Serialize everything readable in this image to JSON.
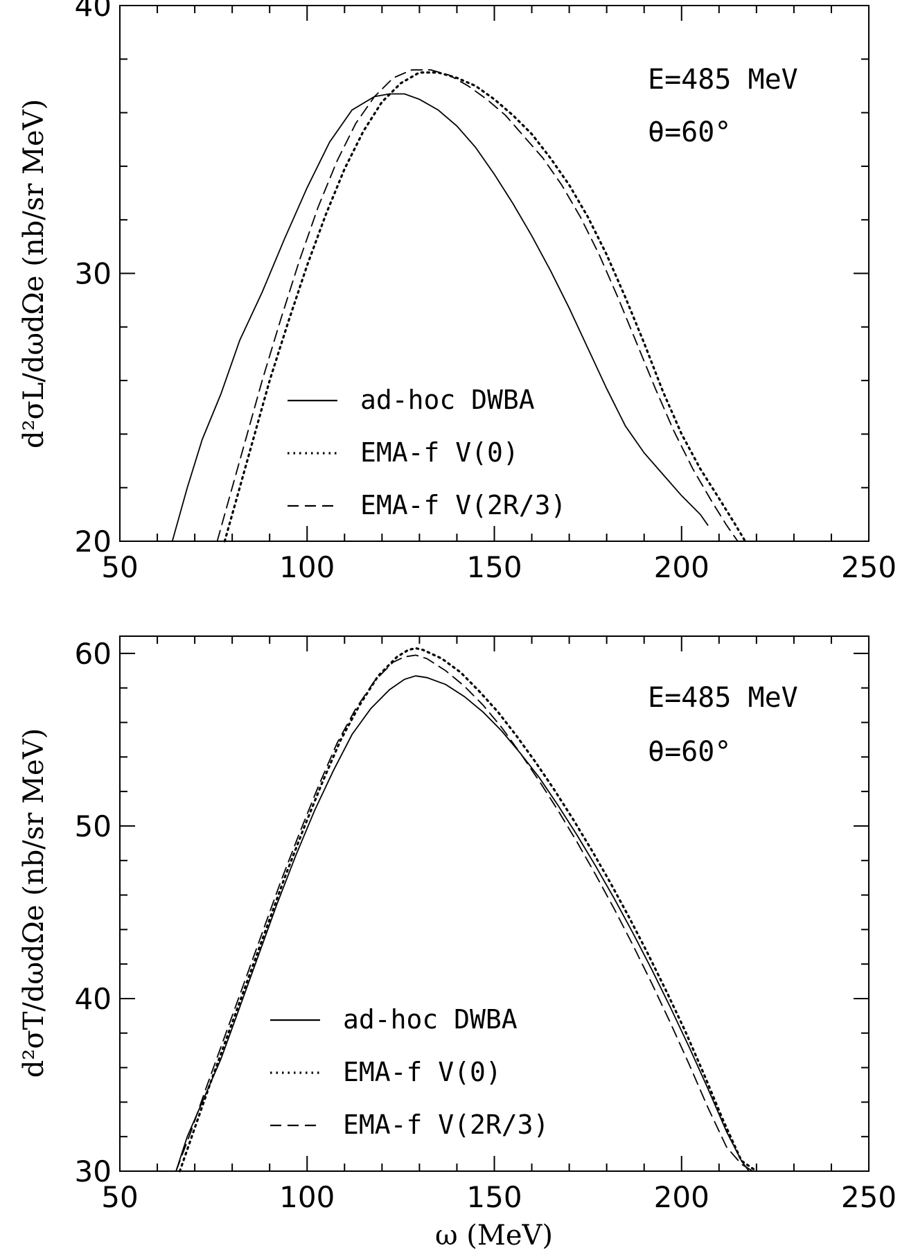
{
  "chart_data": [
    {
      "type": "line",
      "panel": "top",
      "ylabel": "d²σL/dωdΩe (nb/sr MeV)",
      "xlabel": "",
      "xlim": [
        50,
        250
      ],
      "ylim": [
        20,
        40
      ],
      "xticks": [
        "50",
        "100",
        "150",
        "200",
        "250"
      ],
      "yticks": [
        "20",
        "30",
        "40"
      ],
      "annotations": [
        "E=485 MeV",
        "θ=60°"
      ],
      "legend_position": "bottom-left",
      "series": [
        {
          "name": "ad-hoc DWBA",
          "style": "solid",
          "x": [
            64,
            68,
            72,
            77,
            82,
            88,
            94,
            100,
            106,
            112,
            118,
            122,
            126,
            130,
            135,
            140,
            145,
            150,
            155,
            160,
            165,
            170,
            175,
            180,
            185,
            190,
            195,
            200,
            205,
            207
          ],
          "y": [
            20.0,
            22.0,
            23.8,
            25.5,
            27.5,
            29.3,
            31.3,
            33.2,
            34.9,
            36.1,
            36.6,
            36.7,
            36.7,
            36.5,
            36.1,
            35.5,
            34.7,
            33.7,
            32.6,
            31.4,
            30.1,
            28.7,
            27.2,
            25.7,
            24.3,
            23.3,
            22.5,
            21.7,
            21.0,
            20.6
          ]
        },
        {
          "name": "EMA-f V(0)",
          "style": "dotted",
          "x": [
            78,
            82,
            86,
            90,
            95,
            100,
            105,
            110,
            115,
            120,
            125,
            130,
            135,
            140,
            145,
            150,
            155,
            160,
            165,
            170,
            175,
            180,
            185,
            190,
            195,
            200,
            205,
            210,
            214,
            217
          ],
          "y": [
            20.0,
            22.0,
            24.0,
            26.0,
            28.2,
            30.3,
            32.2,
            33.9,
            35.3,
            36.4,
            37.1,
            37.5,
            37.5,
            37.3,
            37.0,
            36.5,
            35.9,
            35.2,
            34.3,
            33.3,
            32.1,
            30.7,
            29.1,
            27.4,
            25.6,
            24.0,
            22.7,
            21.6,
            20.7,
            20.0
          ]
        },
        {
          "name": "EMA-f V(2R/3)",
          "style": "dashed",
          "x": [
            76,
            80,
            84,
            88,
            93,
            98,
            103,
            108,
            113,
            118,
            123,
            128,
            133,
            138,
            143,
            148,
            153,
            158,
            163,
            168,
            173,
            178,
            183,
            188,
            193,
            198,
            203,
            208,
            212,
            215
          ],
          "y": [
            20.0,
            22.0,
            24.0,
            26.0,
            28.3,
            30.5,
            32.5,
            34.2,
            35.6,
            36.6,
            37.3,
            37.6,
            37.6,
            37.4,
            37.0,
            36.5,
            35.9,
            35.1,
            34.3,
            33.3,
            32.1,
            30.7,
            29.1,
            27.4,
            25.7,
            24.1,
            22.7,
            21.5,
            20.6,
            20.0
          ]
        }
      ]
    },
    {
      "type": "line",
      "panel": "bottom",
      "ylabel": "d²σT/dωdΩe (nb/sr MeV)",
      "xlabel": "ω (MeV)",
      "xlim": [
        50,
        250
      ],
      "ylim": [
        30,
        61
      ],
      "xticks": [
        "50",
        "100",
        "150",
        "200",
        "250"
      ],
      "yticks": [
        "30",
        "40",
        "50",
        "60"
      ],
      "annotations": [
        "E=485 MeV",
        "θ=60°"
      ],
      "legend_position": "bottom-left",
      "series": [
        {
          "name": "ad-hoc DWBA",
          "style": "solid",
          "x": [
            65,
            68,
            72,
            77,
            82,
            87,
            92,
            97,
            102,
            107,
            112,
            117,
            122,
            126,
            129,
            132,
            137,
            142,
            147,
            152,
            157,
            162,
            167,
            172,
            177,
            182,
            187,
            192,
            197,
            202,
            207,
            212,
            216,
            218
          ],
          "y": [
            30.0,
            32.0,
            34.0,
            36.5,
            39.5,
            42.5,
            45.5,
            48.3,
            50.9,
            53.2,
            55.3,
            56.8,
            57.9,
            58.5,
            58.7,
            58.6,
            58.2,
            57.5,
            56.6,
            55.5,
            54.2,
            52.8,
            51.2,
            49.5,
            47.7,
            45.8,
            43.8,
            41.7,
            39.5,
            37.2,
            34.8,
            32.3,
            30.6,
            30.0
          ]
        },
        {
          "name": "EMA-f V(0)",
          "style": "dotted",
          "x": [
            66,
            70,
            74,
            79,
            84,
            89,
            94,
            99,
            104,
            109,
            114,
            119,
            124,
            127,
            129,
            131,
            136,
            141,
            146,
            151,
            156,
            161,
            166,
            171,
            176,
            181,
            186,
            191,
            196,
            201,
            206,
            211,
            216,
            220
          ],
          "y": [
            30.0,
            32.5,
            35.0,
            38.0,
            41.0,
            44.0,
            47.0,
            49.8,
            52.5,
            55.0,
            57.0,
            58.7,
            59.8,
            60.2,
            60.3,
            60.2,
            59.7,
            58.9,
            57.8,
            56.6,
            55.2,
            53.7,
            52.1,
            50.4,
            48.6,
            46.7,
            44.7,
            42.6,
            40.4,
            38.1,
            35.6,
            33.0,
            30.6,
            30.0
          ]
        },
        {
          "name": "EMA-f V(2R/3)",
          "style": "dashed",
          "x": [
            65,
            69,
            73,
            78,
            83,
            88,
            93,
            98,
            103,
            108,
            113,
            118,
            123,
            126,
            129,
            132,
            137,
            142,
            147,
            152,
            157,
            162,
            167,
            172,
            177,
            182,
            187,
            192,
            197,
            202,
            207,
            212,
            216,
            219
          ],
          "y": [
            30.0,
            32.3,
            34.8,
            37.8,
            40.8,
            43.8,
            46.8,
            49.6,
            52.3,
            54.8,
            56.8,
            58.4,
            59.5,
            59.8,
            59.9,
            59.7,
            59.0,
            58.1,
            57.0,
            55.7,
            54.2,
            52.6,
            50.9,
            49.1,
            47.2,
            45.2,
            43.1,
            40.9,
            38.6,
            36.2,
            33.7,
            31.4,
            30.4,
            30.0
          ]
        }
      ]
    }
  ]
}
